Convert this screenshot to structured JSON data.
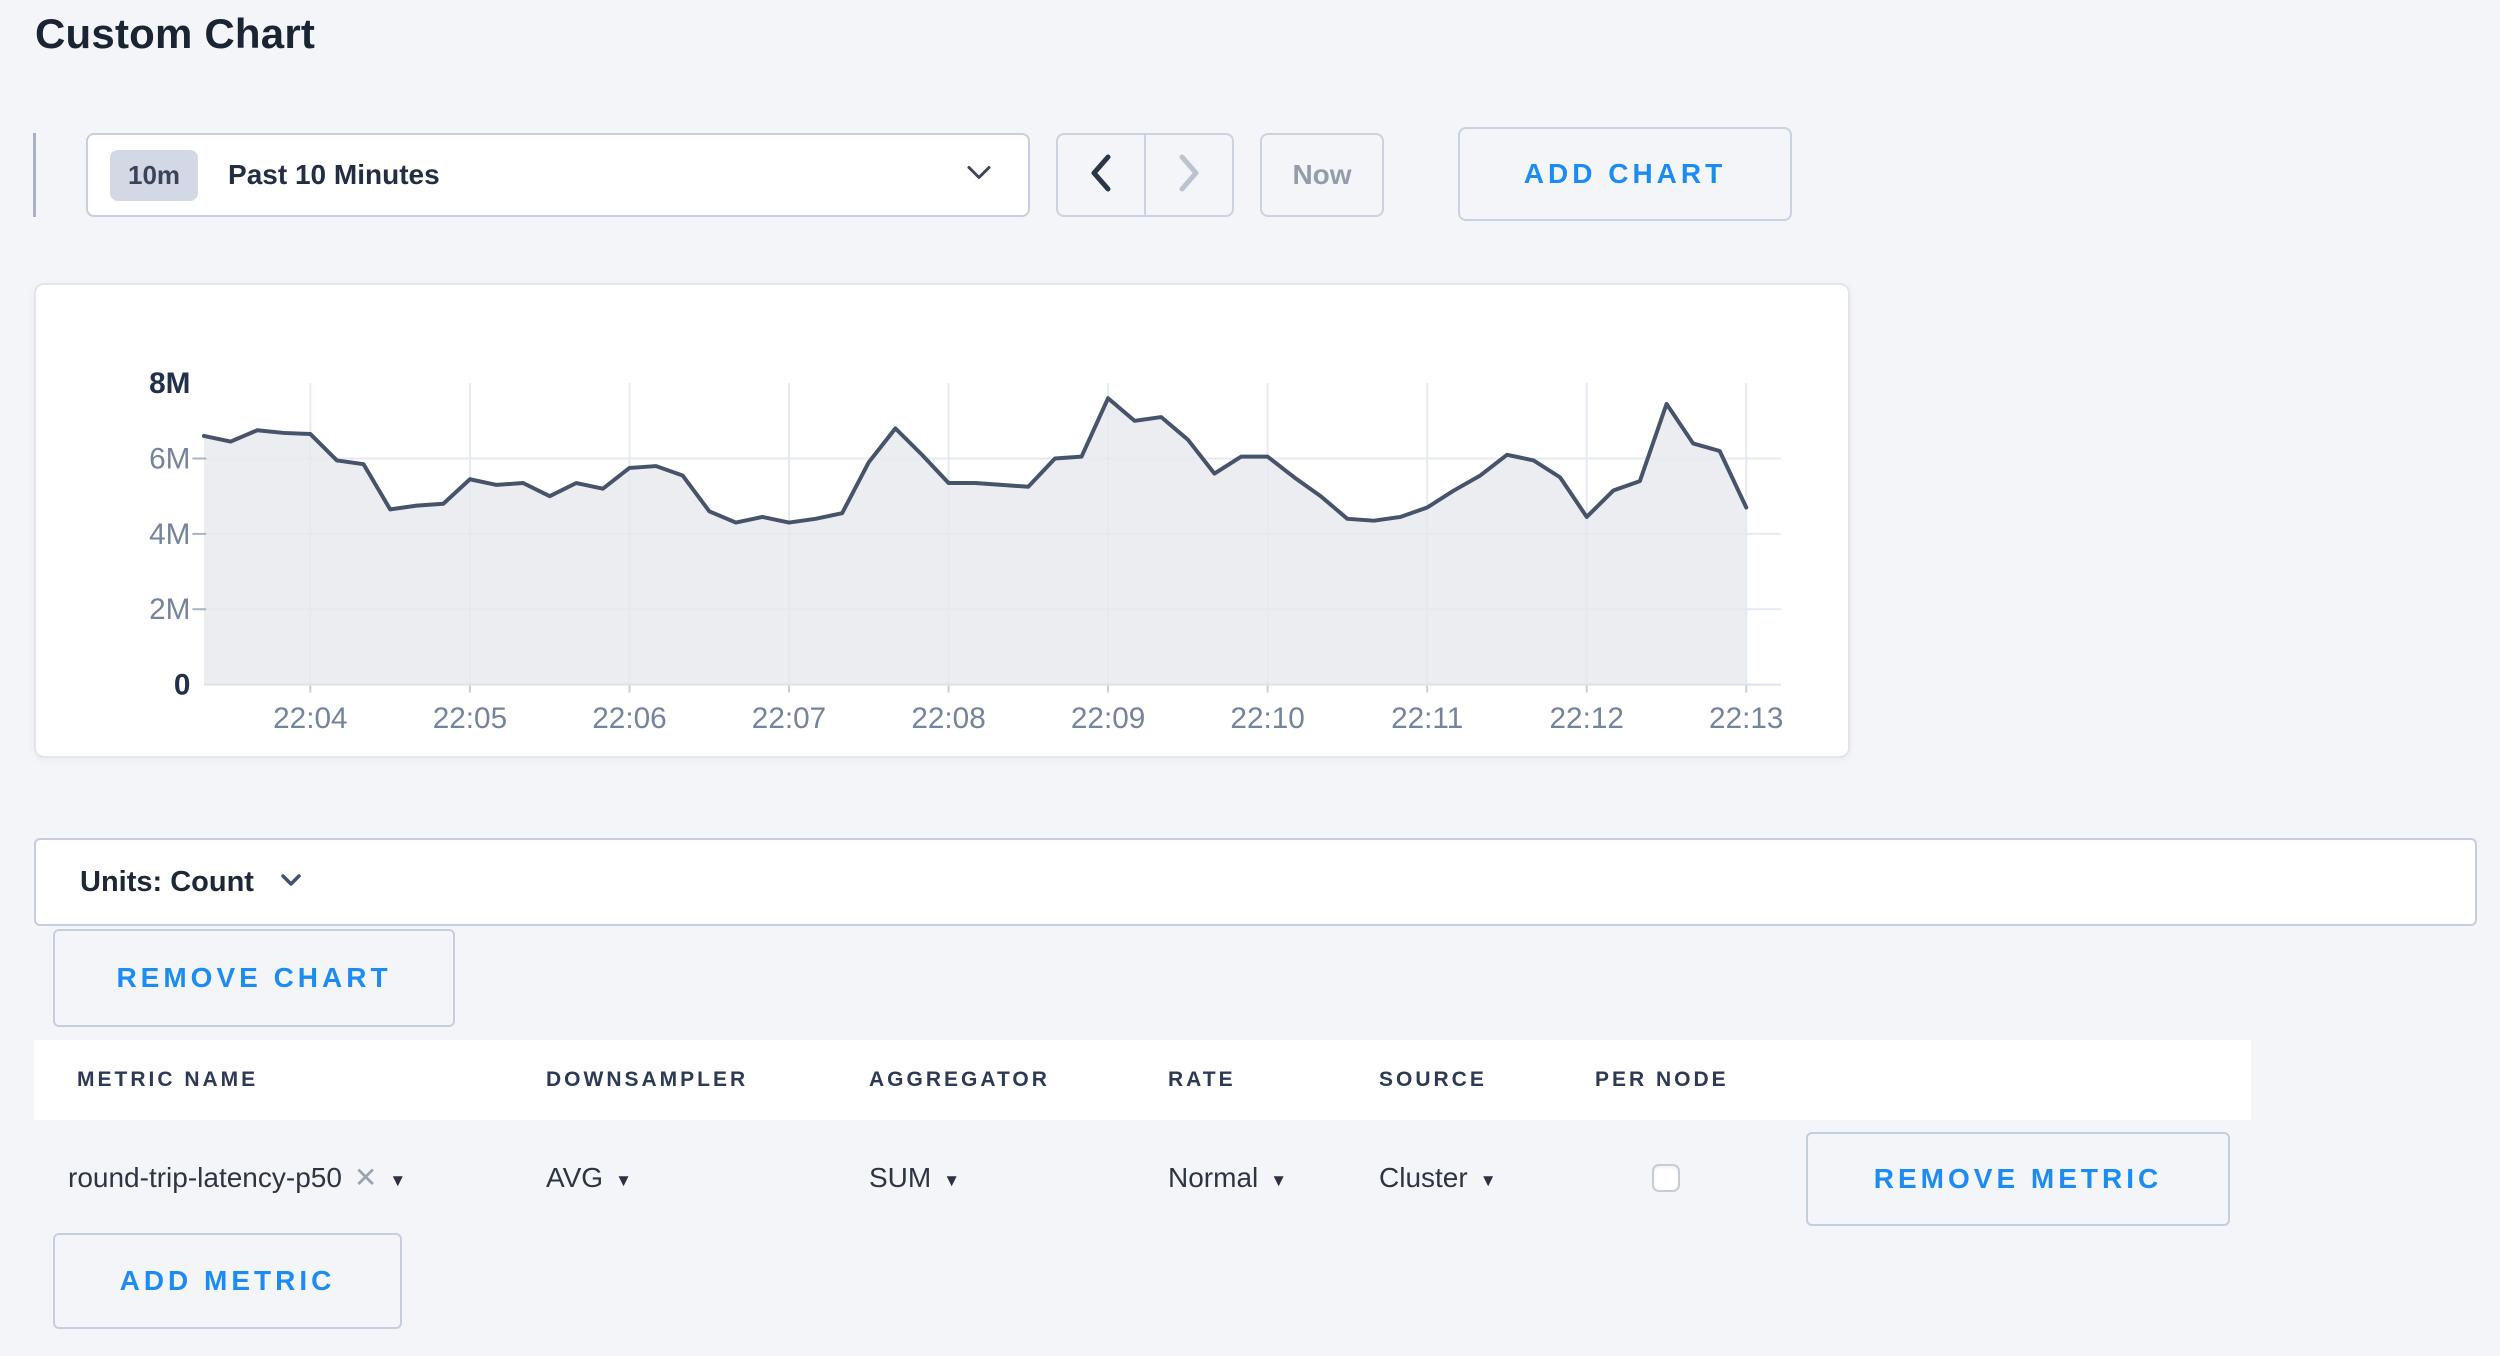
{
  "page": {
    "title": "Custom Chart"
  },
  "toolbar": {
    "time_badge": "10m",
    "time_label": "Past 10 Minutes",
    "now_label": "Now",
    "add_chart_label": "ADD CHART"
  },
  "icons": {
    "caret_down": "▼",
    "remove_x": "✕"
  },
  "chart_data": {
    "type": "area",
    "title": "",
    "unit": "Count",
    "grid": true,
    "legend": "none",
    "ylim_millions": [
      0,
      8
    ],
    "y_ticks": [
      {
        "value_millions": 0,
        "label": "0",
        "strong": true
      },
      {
        "value_millions": 2,
        "label": "2M",
        "strong": false
      },
      {
        "value_millions": 4,
        "label": "4M",
        "strong": false
      },
      {
        "value_millions": 6,
        "label": "6M",
        "strong": false
      },
      {
        "value_millions": 8,
        "label": "8M",
        "strong": true
      }
    ],
    "x_tick_labels": [
      "22:04",
      "22:05",
      "22:06",
      "22:07",
      "22:08",
      "22:09",
      "22:10",
      "22:11",
      "22:12",
      "22:13"
    ],
    "x_start": "22:03:20",
    "x_interval_seconds": 10,
    "line_color": "#46536a",
    "fill_color": "rgba(70,83,106,0.10)",
    "grid_color": "#e4e9f2",
    "series": [
      {
        "name": "round-trip-latency-p50",
        "values_millions": [
          6.6,
          6.45,
          6.75,
          6.68,
          6.65,
          5.95,
          5.85,
          4.65,
          4.75,
          4.8,
          5.45,
          5.3,
          5.35,
          5.0,
          5.35,
          5.2,
          5.75,
          5.8,
          5.55,
          4.6,
          4.3,
          4.45,
          4.3,
          4.4,
          4.55,
          5.9,
          6.8,
          6.1,
          5.35,
          5.35,
          5.3,
          5.25,
          6.0,
          6.05,
          7.6,
          7.0,
          7.1,
          6.5,
          5.6,
          6.05,
          6.05,
          5.5,
          5.0,
          4.4,
          4.35,
          4.45,
          4.7,
          5.15,
          5.55,
          6.1,
          5.95,
          5.5,
          4.45,
          5.15,
          5.4,
          7.45,
          6.4,
          6.2,
          4.7
        ]
      }
    ]
  },
  "units_bar": {
    "label": "Units: Count"
  },
  "buttons": {
    "remove_chart": "REMOVE CHART",
    "remove_metric": "REMOVE METRIC",
    "add_metric": "ADD METRIC"
  },
  "metrics_table": {
    "columns": [
      "METRIC NAME",
      "DOWNSAMPLER",
      "AGGREGATOR",
      "RATE",
      "SOURCE",
      "PER NODE"
    ],
    "rows": [
      {
        "metric_name": "round-trip-latency-p50",
        "downsampler": "AVG",
        "aggregator": "SUM",
        "rate": "Normal",
        "source": "Cluster",
        "per_node_checked": false
      }
    ]
  }
}
